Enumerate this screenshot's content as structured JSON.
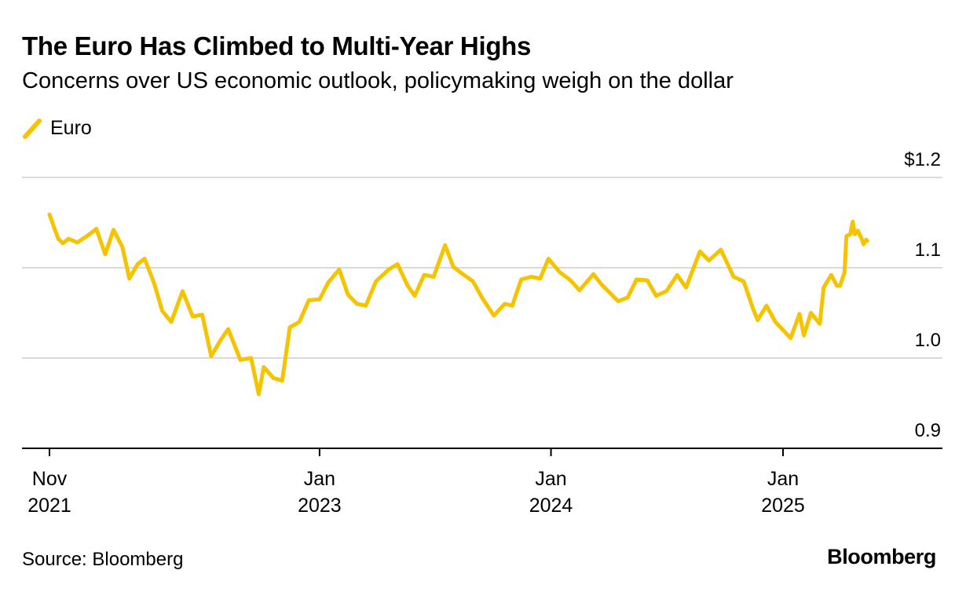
{
  "chart_data": {
    "type": "line",
    "title": "The Euro Has Climbed to Multi-Year Highs",
    "subtitle": "Concerns over US economic outlook, policymaking weigh on the dollar",
    "source": "Source: Bloomberg",
    "brand": "Bloomberg",
    "legend": {
      "position": "top-left"
    },
    "series": [
      {
        "name": "Euro",
        "color": "#F5C300",
        "points": [
          [
            "2021-11-01",
            1.159
          ],
          [
            "2021-11-08",
            1.145
          ],
          [
            "2021-11-15",
            1.132
          ],
          [
            "2021-11-22",
            1.127
          ],
          [
            "2021-12-01",
            1.132
          ],
          [
            "2021-12-15",
            1.128
          ],
          [
            "2022-01-01",
            1.136
          ],
          [
            "2022-01-14",
            1.143
          ],
          [
            "2022-01-28",
            1.115
          ],
          [
            "2022-02-10",
            1.142
          ],
          [
            "2022-02-24",
            1.123
          ],
          [
            "2022-03-07",
            1.088
          ],
          [
            "2022-03-20",
            1.104
          ],
          [
            "2022-03-31",
            1.11
          ],
          [
            "2022-04-15",
            1.083
          ],
          [
            "2022-04-28",
            1.052
          ],
          [
            "2022-05-12",
            1.04
          ],
          [
            "2022-05-30",
            1.074
          ],
          [
            "2022-06-15",
            1.046
          ],
          [
            "2022-06-30",
            1.048
          ],
          [
            "2022-07-14",
            1.002
          ],
          [
            "2022-07-28",
            1.019
          ],
          [
            "2022-08-10",
            1.032
          ],
          [
            "2022-08-29",
            0.998
          ],
          [
            "2022-09-15",
            1.0
          ],
          [
            "2022-09-27",
            0.96
          ],
          [
            "2022-10-05",
            0.99
          ],
          [
            "2022-10-20",
            0.978
          ],
          [
            "2022-11-03",
            0.975
          ],
          [
            "2022-11-15",
            1.034
          ],
          [
            "2022-11-30",
            1.04
          ],
          [
            "2022-12-15",
            1.064
          ],
          [
            "2023-01-01",
            1.065
          ],
          [
            "2023-01-15",
            1.084
          ],
          [
            "2023-02-01",
            1.098
          ],
          [
            "2023-02-15",
            1.07
          ],
          [
            "2023-03-01",
            1.06
          ],
          [
            "2023-03-15",
            1.058
          ],
          [
            "2023-03-31",
            1.085
          ],
          [
            "2023-04-20",
            1.098
          ],
          [
            "2023-05-04",
            1.104
          ],
          [
            "2023-05-20",
            1.08
          ],
          [
            "2023-05-31",
            1.069
          ],
          [
            "2023-06-15",
            1.092
          ],
          [
            "2023-06-30",
            1.09
          ],
          [
            "2023-07-18",
            1.125
          ],
          [
            "2023-07-31",
            1.101
          ],
          [
            "2023-08-15",
            1.093
          ],
          [
            "2023-08-31",
            1.085
          ],
          [
            "2023-09-15",
            1.066
          ],
          [
            "2023-10-03",
            1.047
          ],
          [
            "2023-10-20",
            1.06
          ],
          [
            "2023-11-01",
            1.058
          ],
          [
            "2023-11-15",
            1.087
          ],
          [
            "2023-12-01",
            1.09
          ],
          [
            "2023-12-15",
            1.088
          ],
          [
            "2023-12-28",
            1.11
          ],
          [
            "2024-01-15",
            1.095
          ],
          [
            "2024-02-01",
            1.086
          ],
          [
            "2024-02-15",
            1.075
          ],
          [
            "2024-03-08",
            1.093
          ],
          [
            "2024-03-20",
            1.082
          ],
          [
            "2024-04-16",
            1.063
          ],
          [
            "2024-05-01",
            1.067
          ],
          [
            "2024-05-15",
            1.087
          ],
          [
            "2024-06-01",
            1.086
          ],
          [
            "2024-06-15",
            1.069
          ],
          [
            "2024-07-01",
            1.074
          ],
          [
            "2024-07-18",
            1.092
          ],
          [
            "2024-08-01",
            1.078
          ],
          [
            "2024-08-23",
            1.118
          ],
          [
            "2024-09-06",
            1.108
          ],
          [
            "2024-09-25",
            1.12
          ],
          [
            "2024-10-15",
            1.09
          ],
          [
            "2024-10-31",
            1.085
          ],
          [
            "2024-11-15",
            1.054
          ],
          [
            "2024-11-22",
            1.042
          ],
          [
            "2024-12-06",
            1.058
          ],
          [
            "2024-12-20",
            1.04
          ],
          [
            "2025-01-13",
            1.022
          ],
          [
            "2025-01-27",
            1.049
          ],
          [
            "2025-02-03",
            1.025
          ],
          [
            "2025-02-14",
            1.05
          ],
          [
            "2025-02-28",
            1.038
          ],
          [
            "2025-03-06",
            1.078
          ],
          [
            "2025-03-18",
            1.092
          ],
          [
            "2025-03-27",
            1.08
          ],
          [
            "2025-04-01",
            1.08
          ],
          [
            "2025-04-08",
            1.095
          ],
          [
            "2025-04-11",
            1.135
          ],
          [
            "2025-04-17",
            1.137
          ],
          [
            "2025-04-21",
            1.151
          ],
          [
            "2025-04-24",
            1.137
          ],
          [
            "2025-04-29",
            1.141
          ],
          [
            "2025-05-05",
            1.132
          ],
          [
            "2025-05-08",
            1.126
          ],
          [
            "2025-05-12",
            1.131
          ],
          [
            "2025-05-14",
            1.13
          ]
        ]
      }
    ],
    "x_axis": {
      "type": "date",
      "range": [
        "2021-10-15",
        "2025-07-05"
      ],
      "ticks": [
        {
          "date": "2021-11-01",
          "month": "Nov",
          "year": "2021"
        },
        {
          "date": "2023-01-01",
          "month": "Jan",
          "year": "2023"
        },
        {
          "date": "2024-01-01",
          "month": "Jan",
          "year": "2024"
        },
        {
          "date": "2025-01-01",
          "month": "Jan",
          "year": "2025"
        }
      ]
    },
    "y_axis": {
      "range": [
        0.9,
        1.2
      ],
      "position": "right",
      "ticks": [
        {
          "value": 1.2,
          "label": "$1.2"
        },
        {
          "value": 1.1,
          "label": "1.1"
        },
        {
          "value": 1.0,
          "label": "1.0"
        },
        {
          "value": 0.9,
          "label": "0.9"
        }
      ],
      "grid": true
    }
  },
  "colors": {
    "series": "#F5C300",
    "grid": "#d9d9d9",
    "axis": "#000000",
    "text": "#000000"
  }
}
